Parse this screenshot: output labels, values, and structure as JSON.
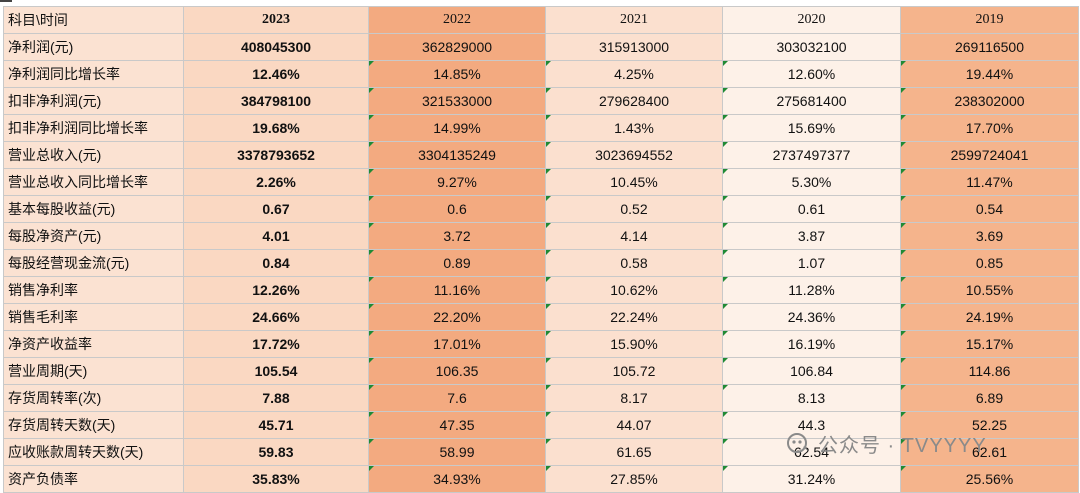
{
  "table": {
    "header": {
      "corner": "科目\\时间",
      "years": [
        "2023",
        "2022",
        "2021",
        "2020",
        "2019"
      ]
    },
    "rows": [
      {
        "label": "净利润(元)",
        "values": [
          "408045300",
          "362829000",
          "315913000",
          "303032100",
          "269116500"
        ]
      },
      {
        "label": "净利润同比增长率",
        "values": [
          "12.46%",
          "14.85%",
          "4.25%",
          "12.60%",
          "19.44%"
        ]
      },
      {
        "label": "扣非净利润(元)",
        "values": [
          "384798100",
          "321533000",
          "279628400",
          "275681400",
          "238302000"
        ]
      },
      {
        "label": "扣非净利润同比增长率",
        "values": [
          "19.68%",
          "14.99%",
          "1.43%",
          "15.69%",
          "17.70%"
        ]
      },
      {
        "label": "营业总收入(元)",
        "values": [
          "3378793652",
          "3304135249",
          "3023694552",
          "2737497377",
          "2599724041"
        ]
      },
      {
        "label": "营业总收入同比增长率",
        "values": [
          "2.26%",
          "9.27%",
          "10.45%",
          "5.30%",
          "11.47%"
        ]
      },
      {
        "label": "基本每股收益(元)",
        "values": [
          "0.67",
          "0.6",
          "0.52",
          "0.61",
          "0.54"
        ]
      },
      {
        "label": "每股净资产(元)",
        "values": [
          "4.01",
          "3.72",
          "4.14",
          "3.87",
          "3.69"
        ]
      },
      {
        "label": "每股经营现金流(元)",
        "values": [
          "0.84",
          "0.89",
          "0.58",
          "1.07",
          "0.85"
        ]
      },
      {
        "label": "销售净利率",
        "values": [
          "12.26%",
          "11.16%",
          "10.62%",
          "11.28%",
          "10.55%"
        ]
      },
      {
        "label": "销售毛利率",
        "values": [
          "24.66%",
          "22.20%",
          "22.24%",
          "24.36%",
          "24.19%"
        ]
      },
      {
        "label": "净资产收益率",
        "values": [
          "17.72%",
          "17.01%",
          "15.90%",
          "16.19%",
          "15.17%"
        ]
      },
      {
        "label": "营业周期(天)",
        "values": [
          "105.54",
          "106.35",
          "105.72",
          "106.84",
          "114.86"
        ]
      },
      {
        "label": "存货周转率(次)",
        "values": [
          "7.88",
          "7.6",
          "8.17",
          "8.13",
          "6.89"
        ]
      },
      {
        "label": "存货周转天数(天)",
        "values": [
          "45.71",
          "47.35",
          "44.07",
          "44.3",
          "52.25"
        ]
      },
      {
        "label": "应收账款周转天数(天)",
        "values": [
          "59.83",
          "58.99",
          "61.65",
          "62.54",
          "62.61"
        ]
      },
      {
        "label": "资产负债率",
        "values": [
          "35.83%",
          "34.93%",
          "27.85%",
          "31.24%",
          "25.56%"
        ]
      }
    ]
  },
  "watermark": {
    "icon": "wechat-official-account-icon",
    "text": "公众号 · TVYYYY"
  }
}
